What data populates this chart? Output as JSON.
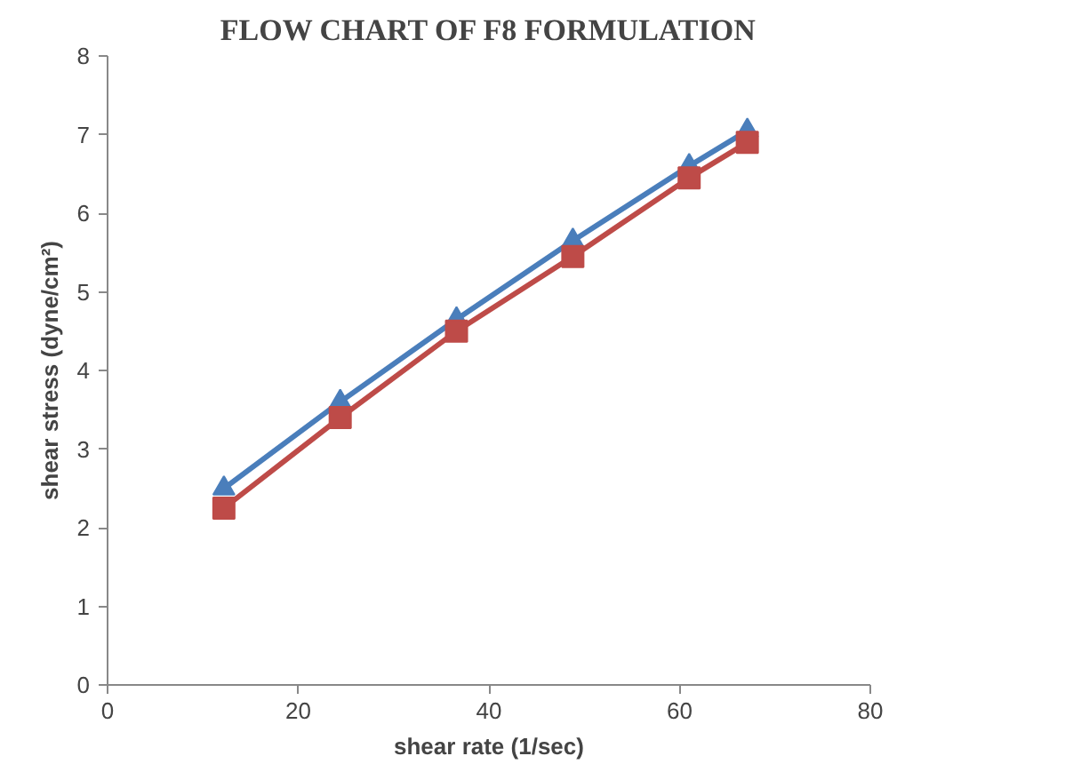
{
  "chart_data": {
    "type": "line",
    "title": "FLOW CHART OF F8 FORMULATION",
    "xlabel": "shear rate (1/sec)",
    "ylabel": "shear stress (dyne/cm²)",
    "x": [
      12.2,
      24.4,
      36.6,
      48.8,
      61,
      67.1
    ],
    "series": [
      {
        "color": "#4a7ebb",
        "values": [
          2.5,
          3.6,
          4.65,
          5.65,
          6.6,
          7.05
        ],
        "marker": "triangle"
      },
      {
        "color": "#be4b48",
        "values": [
          2.25,
          3.4,
          4.5,
          5.45,
          6.45,
          6.9
        ],
        "marker": "square"
      }
    ],
    "xlim": [
      0,
      80
    ],
    "xticks": [
      0,
      20,
      40,
      60,
      80
    ],
    "ylim": [
      0,
      8
    ],
    "yticks": [
      0,
      1,
      2,
      3,
      4,
      5,
      6,
      7,
      8
    ],
    "grid": false,
    "line_style": "solid"
  }
}
